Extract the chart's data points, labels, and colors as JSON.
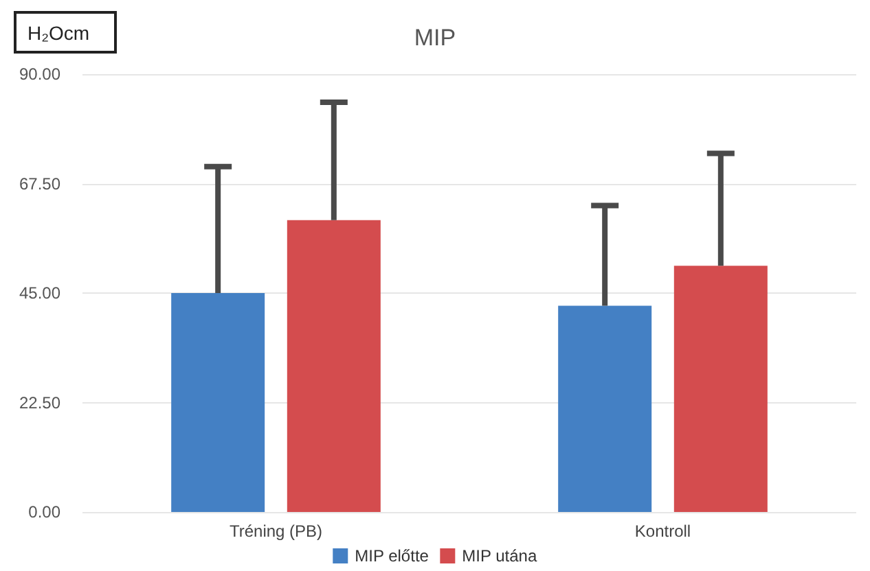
{
  "chart_data": {
    "type": "bar",
    "title": "MIP",
    "ylabel": "H₂Ocm",
    "categories": [
      "Tréning (PB)",
      "Kontroll"
    ],
    "series": [
      {
        "name": "MIP előtte",
        "color": "#4480c4",
        "values": [
          45.0,
          42.4
        ],
        "errors": [
          [
            45.0,
            71
          ],
          [
            42.4,
            63
          ]
        ]
      },
      {
        "name": "MIP utána",
        "color": "#d44c4e",
        "values": [
          60,
          50.6
        ],
        "errors": [
          [
            60,
            84.2
          ],
          [
            50.6,
            73.7
          ]
        ]
      }
    ],
    "ylim": [
      0,
      90
    ],
    "yticks": [
      {
        "value": 0,
        "label": "0.00"
      },
      {
        "value": 22.5,
        "label": "22.50"
      },
      {
        "value": 45,
        "label": "45.00"
      },
      {
        "value": 67.5,
        "label": "67.50"
      },
      {
        "value": 90,
        "label": "90.00"
      }
    ],
    "grid": "y",
    "legend": "bottom"
  }
}
